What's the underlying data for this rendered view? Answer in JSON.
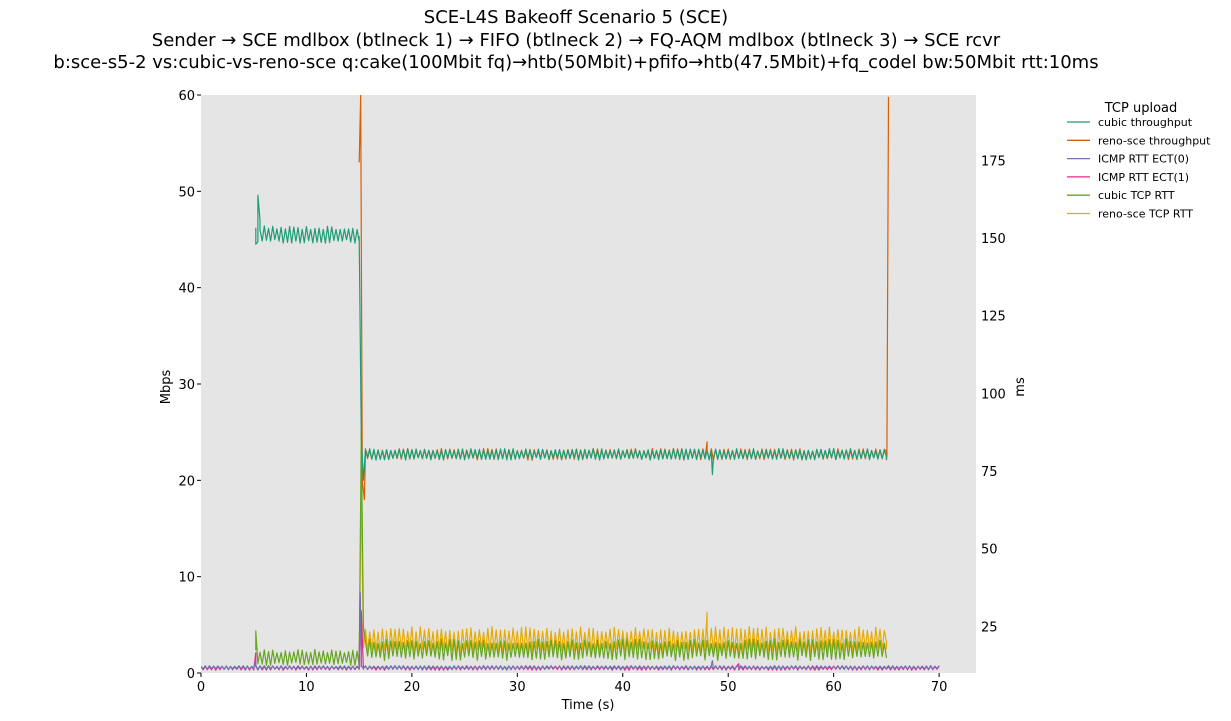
{
  "chart_data": {
    "type": "line",
    "title_lines": [
      "SCE-L4S Bakeoff Scenario 5 (SCE)",
      "Sender → SCE mdlbox (btlneck 1) → FIFO (btlneck 2) → FQ-AQM mdlbox (btlneck 3) → SCE rcvr",
      "b:sce-s5-2 vs:cubic-vs-reno-sce q:cake(100Mbit fq)→htb(50Mbit)+pfifo→htb(47.5Mbit)+fq_codel bw:50Mbit rtt:10ms"
    ],
    "xlabel": "Time (s)",
    "ylabel_left": "Mbps",
    "ylabel_right": "ms",
    "xlim": [
      0,
      73.5
    ],
    "ylim_left": [
      0,
      60
    ],
    "ylim_right": [
      10,
      196
    ],
    "xticks": [
      0,
      10,
      20,
      30,
      40,
      50,
      60,
      70
    ],
    "yticks_left": [
      0,
      10,
      20,
      30,
      40,
      50,
      60
    ],
    "yticks_right": [
      25,
      50,
      75,
      100,
      125,
      150,
      175
    ],
    "grid": false,
    "plot_background": "#e5e5e5",
    "legend": {
      "title": "TCP upload",
      "placement": "outside-right"
    },
    "series": [
      {
        "name": "cubic throughput",
        "axis": "left",
        "color": "#1b9e77",
        "segments": [
          {
            "x_start": 5.2,
            "x_end": 15.0,
            "mean": 45.5,
            "amp": 0.9
          },
          {
            "x_start": 15.6,
            "x_end": 65.0,
            "mean": 22.7,
            "amp": 0.6
          }
        ],
        "points": [
          [
            5.2,
            44.5
          ],
          [
            5.4,
            49.6
          ],
          [
            5.6,
            47
          ],
          [
            15.0,
            45.3
          ],
          [
            15.2,
            24.5
          ],
          [
            15.4,
            20
          ],
          [
            15.6,
            23
          ],
          [
            48.5,
            20.6
          ],
          [
            65.0,
            22.5
          ]
        ]
      },
      {
        "name": "reno-sce throughput",
        "axis": "left",
        "color": "#d95f02",
        "segments": [
          {
            "x_start": 15.6,
            "x_end": 65.0,
            "mean": 22.7,
            "amp": 0.6
          }
        ],
        "points": [
          [
            15.0,
            53
          ],
          [
            15.15,
            60
          ],
          [
            15.3,
            20
          ],
          [
            15.5,
            18
          ],
          [
            15.7,
            23
          ],
          [
            48.0,
            24
          ],
          [
            65.0,
            23
          ],
          [
            65.05,
            22.5
          ],
          [
            65.2,
            59.8
          ]
        ]
      },
      {
        "name": "ICMP RTT ECT(0)",
        "axis": "right",
        "color": "#7570b3",
        "segments": [
          {
            "x_start": 0,
            "x_end": 70,
            "mean": 11.8,
            "amp": 0.6
          }
        ],
        "points": [
          [
            5.2,
            14
          ],
          [
            15.1,
            36
          ],
          [
            15.3,
            12
          ],
          [
            48.5,
            14
          ],
          [
            51.0,
            12
          ]
        ]
      },
      {
        "name": "ICMP RTT ECT(1)",
        "axis": "right",
        "color": "#e7298a",
        "segments": [
          {
            "x_start": 0,
            "x_end": 70,
            "mean": 11.6,
            "amp": 0.7
          }
        ],
        "points": [
          [
            5.2,
            16.5
          ],
          [
            15.1,
            35
          ],
          [
            15.2,
            30
          ],
          [
            15.4,
            12
          ],
          [
            51.0,
            13
          ]
        ]
      },
      {
        "name": "cubic TCP RTT",
        "axis": "right",
        "color": "#66a61e",
        "segments": [
          {
            "x_start": 5.2,
            "x_end": 15.0,
            "mean": 15.0,
            "amp": 2.6
          },
          {
            "x_start": 15.6,
            "x_end": 65.0,
            "mean": 17.5,
            "amp": 3.5
          }
        ],
        "points": [
          [
            5.2,
            23.5
          ],
          [
            15.0,
            14
          ],
          [
            15.2,
            88
          ],
          [
            15.4,
            25
          ],
          [
            65.0,
            15
          ]
        ]
      },
      {
        "name": "reno-sce TCP RTT",
        "axis": "right",
        "color": "#e6ab02",
        "segments": [
          {
            "x_start": 15.6,
            "x_end": 65.0,
            "mean": 20.5,
            "amp": 4.5
          }
        ],
        "points": [
          [
            15.0,
            14
          ],
          [
            15.2,
            70
          ],
          [
            15.4,
            18
          ],
          [
            48.0,
            29.5
          ],
          [
            65.0,
            20
          ]
        ]
      }
    ]
  }
}
